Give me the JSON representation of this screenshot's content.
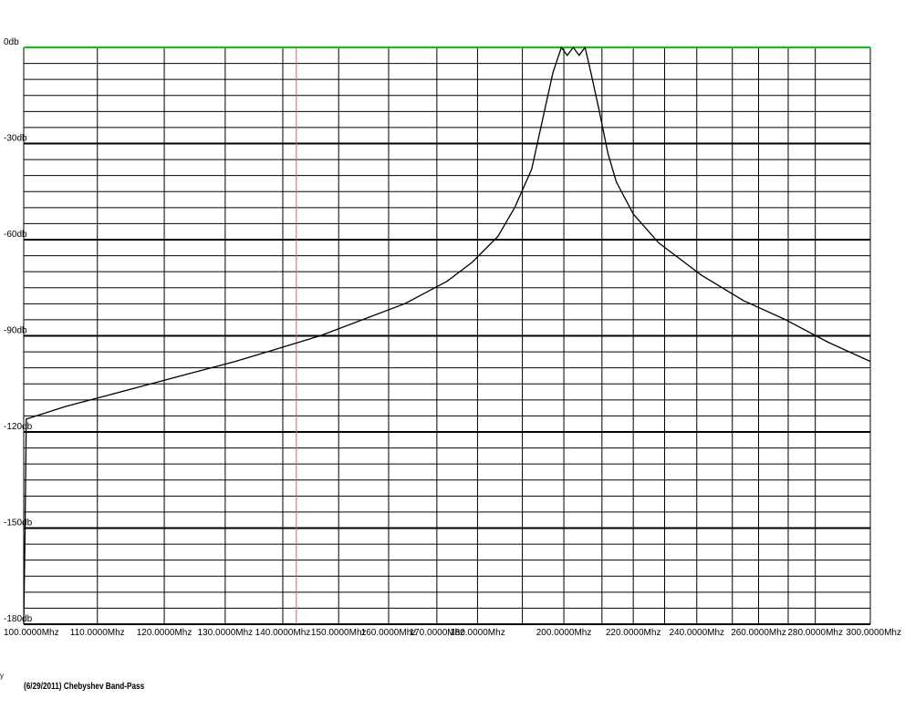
{
  "chart_data": {
    "type": "line",
    "caption": "(6/29/2011) Chebyshev Band-Pass",
    "corner_mark": "y",
    "colors": {
      "top_line": "#00cc00",
      "marker": "#cc6666",
      "trace": "#000000",
      "grid": "#000000"
    },
    "y_ticks": [
      {
        "value": 0,
        "label": "0db"
      },
      {
        "value": -30,
        "label": "-30db"
      },
      {
        "value": -60,
        "label": "-60db"
      },
      {
        "value": -90,
        "label": "-90db"
      },
      {
        "value": -120,
        "label": "-120db"
      },
      {
        "value": -150,
        "label": "-150db"
      },
      {
        "value": -180,
        "label": "-180db"
      }
    ],
    "ylim": [
      -180,
      0
    ],
    "minor_y_step_db": 5,
    "x_labels": [
      "100.0000Mhz",
      "110.0000Mhz",
      "120.0000Mhz",
      "130.0000Mhz",
      "140.0000Mhz",
      "150.0000Mhz",
      "160.0000Mhz",
      "170.0000Mhz",
      "180.0000Mhz",
      "200.0000Mhz",
      "220.0000Mhz",
      "240.0000Mhz",
      "260.0000Mhz",
      "280.0000Mhz",
      "300.0000Mhz"
    ],
    "x_label_pos_frac": [
      0,
      0.087,
      0.166,
      0.238,
      0.306,
      0.372,
      0.431,
      0.488,
      0.536,
      0.638,
      0.72,
      0.795,
      0.868,
      0.935,
      1.0
    ],
    "x_grid_frac": [
      0.0,
      0.087,
      0.166,
      0.238,
      0.306,
      0.372,
      0.431,
      0.488,
      0.536,
      0.589,
      0.638,
      0.683,
      0.72,
      0.757,
      0.795,
      0.837,
      0.868,
      0.903,
      0.935,
      1.0
    ],
    "marker_frac": 0.322,
    "series": [
      {
        "points_frac": [
          [
            0.0,
            -180
          ],
          [
            0.0015,
            -152
          ],
          [
            0.003,
            -116
          ],
          [
            0.05,
            -112
          ],
          [
            0.1,
            -108.5
          ],
          [
            0.15,
            -105
          ],
          [
            0.2,
            -101.5
          ],
          [
            0.25,
            -98
          ],
          [
            0.3,
            -94
          ],
          [
            0.35,
            -90
          ],
          [
            0.4,
            -85
          ],
          [
            0.45,
            -80
          ],
          [
            0.5,
            -73
          ],
          [
            0.53,
            -67
          ],
          [
            0.56,
            -59
          ],
          [
            0.58,
            -50
          ],
          [
            0.6,
            -38
          ],
          [
            0.615,
            -20
          ],
          [
            0.625,
            -8
          ],
          [
            0.635,
            0
          ],
          [
            0.642,
            -2.5
          ],
          [
            0.649,
            0
          ],
          [
            0.656,
            -2.5
          ],
          [
            0.663,
            0
          ],
          [
            0.67,
            -8
          ],
          [
            0.68,
            -20
          ],
          [
            0.69,
            -33
          ],
          [
            0.7,
            -42
          ],
          [
            0.72,
            -52
          ],
          [
            0.75,
            -61
          ],
          [
            0.8,
            -71
          ],
          [
            0.85,
            -79
          ],
          [
            0.9,
            -85
          ],
          [
            0.95,
            -92
          ],
          [
            1.0,
            -98
          ]
        ]
      }
    ]
  }
}
